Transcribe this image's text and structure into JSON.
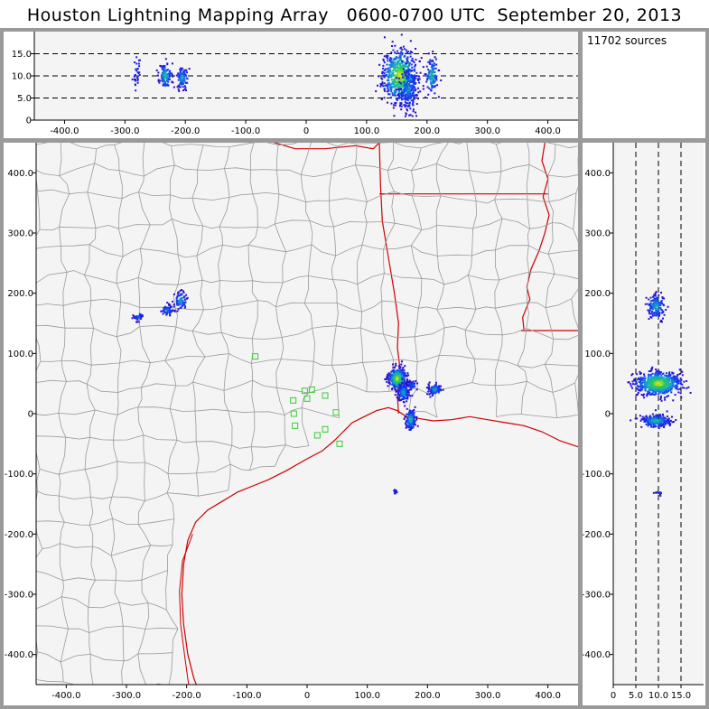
{
  "title": "Houston Lightning Mapping Array   0600-0700 UTC  September 20, 2013",
  "source_count_label": "11702 sources",
  "colors": {
    "panel_bg": "#f4f4f4",
    "county_lines": "#9a9a9a",
    "coast_and_state_lines": "#cc0000",
    "stations": "#33cc33",
    "density_low": "#3311cc",
    "density_high": "#ffee00"
  },
  "chart_data": [
    {
      "type": "scatter",
      "name": "altitude-vs-east-west",
      "xlim": [
        -450,
        450
      ],
      "ylim": [
        0,
        20
      ],
      "xticks": [
        -400,
        -300,
        -200,
        -100,
        0,
        100,
        200,
        300,
        400
      ],
      "xtick_labels": [
        "-400.0",
        "-300.0",
        "-200.0",
        "-100.0",
        "0",
        "100.0",
        "200.0",
        "300.0",
        "400.0"
      ],
      "yticks": [
        0,
        5,
        10,
        15
      ],
      "ytick_labels": [
        "0",
        "5.0",
        "10.0",
        "15.0"
      ],
      "dashed_lines": [
        5,
        10,
        15
      ],
      "clusters": [
        {
          "x": -280,
          "y": 11,
          "sx": 3,
          "sy": 2.5,
          "n": 30,
          "peak": 0.2
        },
        {
          "x": -233,
          "y": 10,
          "sx": 5,
          "sy": 1.4,
          "n": 110,
          "peak": 0.7
        },
        {
          "x": -205,
          "y": 9.5,
          "sx": 5,
          "sy": 1.2,
          "n": 90,
          "peak": 0.6
        },
        {
          "x": 155,
          "y": 10,
          "sx": 14,
          "sy": 3,
          "n": 620,
          "peak": 1.0
        },
        {
          "x": 170,
          "y": 7,
          "sx": 8,
          "sy": 2.5,
          "n": 180,
          "peak": 0.5
        },
        {
          "x": 208,
          "y": 10,
          "sx": 5,
          "sy": 2,
          "n": 120,
          "peak": 0.7
        }
      ]
    },
    {
      "type": "scatter",
      "name": "plan-view",
      "xlim": [
        -450,
        450
      ],
      "ylim": [
        -450,
        450
      ],
      "xticks": [
        -400,
        -300,
        -200,
        -100,
        0,
        100,
        200,
        300,
        400
      ],
      "xtick_labels": [
        "-400.0",
        "-300.0",
        "-200.0",
        "-100.0",
        "0",
        "100.0",
        "200.0",
        "300.0",
        "400.0"
      ],
      "yticks": [
        400,
        300,
        200,
        100,
        0,
        -100,
        -200,
        -300,
        -400
      ],
      "ytick_labels": [
        "400.0",
        "300.0",
        "200.0",
        "100.0",
        "0",
        "-100.0",
        "-200.0",
        "-300.0",
        "-400.0"
      ],
      "stations": [
        [
          -86,
          95
        ],
        [
          -23,
          22
        ],
        [
          -4,
          38
        ],
        [
          -20,
          -20
        ],
        [
          -22,
          0
        ],
        [
          0,
          25
        ],
        [
          8,
          40
        ],
        [
          17,
          -36
        ],
        [
          30,
          -26
        ],
        [
          30,
          30
        ],
        [
          48,
          2
        ],
        [
          54,
          -50
        ]
      ],
      "clusters": [
        {
          "x": -210,
          "y": 188,
          "sx": 5,
          "sy": 7,
          "n": 70,
          "peak": 0.6
        },
        {
          "x": -232,
          "y": 172,
          "sx": 5,
          "sy": 4,
          "n": 60,
          "peak": 0.5
        },
        {
          "x": -280,
          "y": 160,
          "sx": 5,
          "sy": 3,
          "n": 40,
          "peak": 0.4
        },
        {
          "x": 150,
          "y": 58,
          "sx": 7,
          "sy": 9,
          "n": 420,
          "peak": 1.0
        },
        {
          "x": 160,
          "y": 35,
          "sx": 5,
          "sy": 7,
          "n": 150,
          "peak": 0.6
        },
        {
          "x": 172,
          "y": -10,
          "sx": 4,
          "sy": 8,
          "n": 170,
          "peak": 0.7
        },
        {
          "x": 175,
          "y": 47,
          "sx": 4,
          "sy": 4,
          "n": 50,
          "peak": 0.4
        },
        {
          "x": 212,
          "y": 40,
          "sx": 5,
          "sy": 5,
          "n": 110,
          "peak": 0.6
        },
        {
          "x": 147,
          "y": -130,
          "sx": 2,
          "sy": 2,
          "n": 14,
          "peak": 0.2
        }
      ]
    },
    {
      "type": "scatter",
      "name": "north-south-vs-altitude",
      "xlim": [
        0,
        20
      ],
      "ylim": [
        -450,
        450
      ],
      "xticks": [
        0,
        5,
        10,
        15
      ],
      "xtick_labels": [
        "0",
        "5.0",
        "10.0",
        "15.0"
      ],
      "yticks": [
        400,
        300,
        200,
        100,
        0,
        -100,
        -200,
        -300,
        -400
      ],
      "ytick_labels": [
        "400.0",
        "300.0",
        "200.0",
        "100.0",
        "0",
        "-100.0",
        "-200.0",
        "-300.0",
        "-400.0"
      ],
      "dashed_lines": [
        5,
        10,
        15
      ],
      "clusters": [
        {
          "x": 9.5,
          "y": 178,
          "sx": 1.0,
          "sy": 10,
          "n": 150,
          "peak": 0.6
        },
        {
          "x": 10,
          "y": 50,
          "sx": 2.5,
          "sy": 10,
          "n": 650,
          "peak": 1.0
        },
        {
          "x": 9.5,
          "y": -12,
          "sx": 1.5,
          "sy": 5,
          "n": 230,
          "peak": 0.7
        },
        {
          "x": 10,
          "y": -133,
          "sx": 0.7,
          "sy": 1.5,
          "n": 12,
          "peak": 0.2
        }
      ]
    }
  ]
}
